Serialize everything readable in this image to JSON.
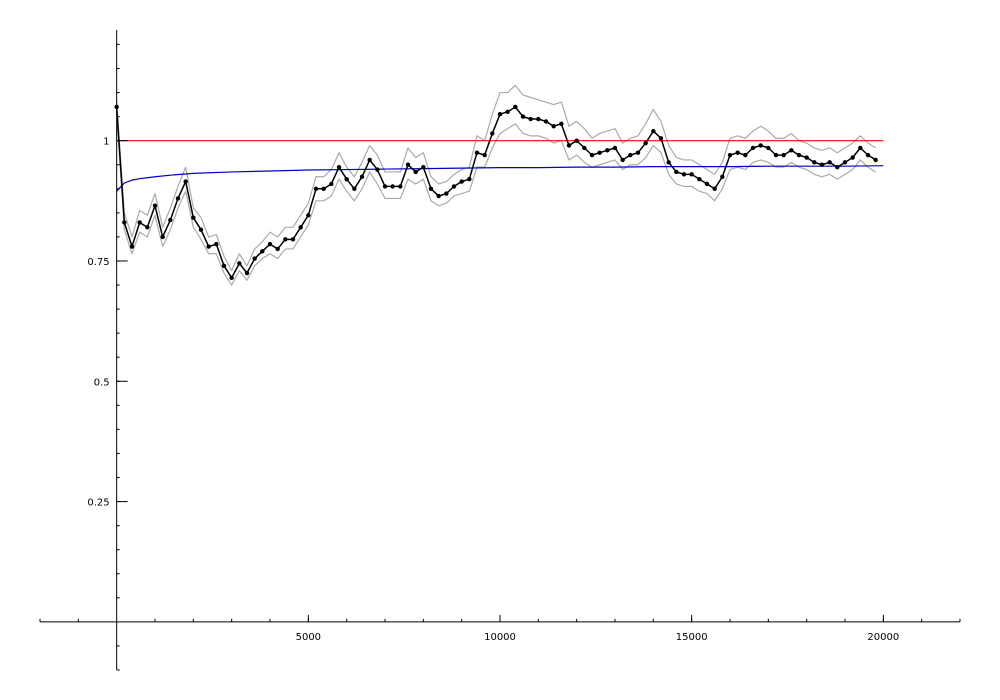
{
  "chart_data": {
    "type": "line",
    "title": "",
    "xlabel": "",
    "ylabel": "",
    "xlim": [
      -2000,
      22000
    ],
    "ylim": [
      -0.1,
      1.23
    ],
    "x_ticks": [
      {
        "value": 5000,
        "label": "5000"
      },
      {
        "value": 10000,
        "label": "10000"
      },
      {
        "value": 15000,
        "label": "15000"
      },
      {
        "value": 20000,
        "label": "20000"
      }
    ],
    "y_ticks": [
      {
        "value": 0.25,
        "label": "0.25"
      },
      {
        "value": 0.5,
        "label": "0.5"
      },
      {
        "value": 0.75,
        "label": "0.75"
      },
      {
        "value": 1,
        "label": "1"
      }
    ],
    "x_minor_step": 1000,
    "y_minor_step": 0.05,
    "grid": false,
    "colors": {
      "main": "#000000",
      "band": "#aaaaaa",
      "reference": "#ff0000",
      "trend": "#0000cc"
    },
    "series": [
      {
        "role": "estimate",
        "x": [
          0,
          200,
          400,
          600,
          800,
          1000,
          1200,
          1400,
          1600,
          1800,
          2000,
          2200,
          2400,
          2600,
          2800,
          3000,
          3200,
          3400,
          3600,
          3800,
          4000,
          4200,
          4400,
          4600,
          4800,
          5000,
          5200,
          5400,
          5600,
          5800,
          6000,
          6200,
          6400,
          6600,
          6800,
          7000,
          7200,
          7400,
          7600,
          7800,
          8000,
          8200,
          8400,
          8600,
          8800,
          9000,
          9200,
          9400,
          9600,
          9800,
          10000,
          10200,
          10400,
          10600,
          10800,
          11000,
          11200,
          11400,
          11600,
          11800,
          12000,
          12200,
          12400,
          12600,
          12800,
          13000,
          13200,
          13400,
          13600,
          13800,
          14000,
          14200,
          14400,
          14600,
          14800,
          15000,
          15200,
          15400,
          15600,
          15800,
          16000,
          16200,
          16400,
          16600,
          16800,
          17000,
          17200,
          17400,
          17600,
          17800,
          18000,
          18200,
          18400,
          18600,
          18800,
          19000,
          19200,
          19400,
          19600,
          19800,
          20000
        ],
        "y": [
          1.07,
          0.83,
          0.78,
          0.83,
          0.82,
          0.865,
          0.8,
          0.835,
          0.88,
          0.915,
          0.84,
          0.815,
          0.78,
          0.785,
          0.74,
          0.715,
          0.745,
          0.725,
          0.755,
          0.77,
          0.785,
          0.775,
          0.795,
          0.795,
          0.82,
          0.845,
          0.9,
          0.9,
          0.91,
          0.945,
          0.92,
          0.9,
          0.925,
          0.96,
          0.94,
          0.905,
          0.905,
          0.905,
          0.95,
          0.935,
          0.945,
          0.9,
          0.885,
          0.89,
          0.905,
          0.915,
          0.92,
          0.975,
          0.97,
          1.015,
          1.055,
          1.06,
          1.07,
          1.05,
          1.045,
          1.045,
          1.04,
          1.03,
          1.035,
          0.99,
          1.0,
          0.985,
          0.97,
          0.975,
          0.98,
          0.985,
          0.96,
          0.97,
          0.975,
          0.995,
          1.02,
          1.005,
          0.955,
          0.935,
          0.93,
          0.93,
          0.92,
          0.91,
          0.9,
          0.925,
          0.97,
          0.975,
          0.97,
          0.985,
          0.99,
          0.985,
          0.97,
          0.97,
          0.98,
          0.97,
          0.965,
          0.955,
          0.95,
          0.955,
          0.945,
          0.955,
          0.965,
          0.985,
          0.97,
          0.96,
          null
        ]
      },
      {
        "role": "upper-band",
        "x": [
          0,
          200,
          400,
          600,
          800,
          1000,
          1200,
          1400,
          1600,
          1800,
          2000,
          2200,
          2400,
          2600,
          2800,
          3000,
          3200,
          3400,
          3600,
          3800,
          4000,
          4200,
          4400,
          4600,
          4800,
          5000,
          5200,
          5400,
          5600,
          5800,
          6000,
          6200,
          6400,
          6600,
          6800,
          7000,
          7200,
          7400,
          7600,
          7800,
          8000,
          8200,
          8400,
          8600,
          8800,
          9000,
          9200,
          9400,
          9600,
          9800,
          10000,
          10200,
          10400,
          10600,
          10800,
          11000,
          11200,
          11400,
          11600,
          11800,
          12000,
          12200,
          12400,
          12600,
          12800,
          13000,
          13200,
          13400,
          13600,
          13800,
          14000,
          14200,
          14400,
          14600,
          14800,
          15000,
          15200,
          15400,
          15600,
          15800,
          16000,
          16200,
          16400,
          16600,
          16800,
          17000,
          17200,
          17400,
          17600,
          17800,
          18000,
          18200,
          18400,
          18600,
          18800,
          19000,
          19200,
          19400,
          19600,
          19800
        ],
        "y": [
          1.08,
          0.85,
          0.8,
          0.855,
          0.845,
          0.89,
          0.82,
          0.86,
          0.905,
          0.945,
          0.86,
          0.84,
          0.8,
          0.805,
          0.76,
          0.73,
          0.765,
          0.74,
          0.775,
          0.79,
          0.81,
          0.8,
          0.82,
          0.82,
          0.845,
          0.87,
          0.925,
          0.925,
          0.94,
          0.975,
          0.945,
          0.925,
          0.955,
          0.99,
          0.97,
          0.935,
          0.935,
          0.935,
          0.985,
          0.965,
          0.975,
          0.925,
          0.91,
          0.915,
          0.93,
          0.94,
          0.945,
          1.01,
          1.0,
          1.055,
          1.1,
          1.1,
          1.115,
          1.095,
          1.09,
          1.085,
          1.08,
          1.075,
          1.08,
          1.03,
          1.04,
          1.025,
          1.005,
          1.015,
          1.02,
          1.025,
          0.995,
          1.005,
          1.01,
          1.035,
          1.065,
          1.04,
          0.99,
          0.965,
          0.96,
          0.96,
          0.95,
          0.94,
          0.93,
          0.955,
          1.005,
          1.01,
          1.005,
          1.02,
          1.03,
          1.02,
          1.005,
          1.005,
          1.015,
          1.0,
          0.995,
          0.985,
          0.98,
          0.985,
          0.975,
          0.985,
          0.995,
          1.01,
          0.995,
          0.985
        ]
      },
      {
        "role": "lower-band",
        "x": [
          0,
          200,
          400,
          600,
          800,
          1000,
          1200,
          1400,
          1600,
          1800,
          2000,
          2200,
          2400,
          2600,
          2800,
          3000,
          3200,
          3400,
          3600,
          3800,
          4000,
          4200,
          4400,
          4600,
          4800,
          5000,
          5200,
          5400,
          5600,
          5800,
          6000,
          6200,
          6400,
          6600,
          6800,
          7000,
          7200,
          7400,
          7600,
          7800,
          8000,
          8200,
          8400,
          8600,
          8800,
          9000,
          9200,
          9400,
          9600,
          9800,
          10000,
          10200,
          10400,
          10600,
          10800,
          11000,
          11200,
          11400,
          11600,
          11800,
          12000,
          12200,
          12400,
          12600,
          12800,
          13000,
          13200,
          13400,
          13600,
          13800,
          14000,
          14200,
          14400,
          14600,
          14800,
          15000,
          15200,
          15400,
          15600,
          15800,
          16000,
          16200,
          16400,
          16600,
          16800,
          17000,
          17200,
          17400,
          17600,
          17800,
          18000,
          18200,
          18400,
          18600,
          18800,
          19000,
          19200,
          19400,
          19600,
          19800
        ],
        "y": [
          1.06,
          0.815,
          0.765,
          0.81,
          0.8,
          0.845,
          0.78,
          0.815,
          0.86,
          0.895,
          0.82,
          0.795,
          0.765,
          0.765,
          0.725,
          0.7,
          0.73,
          0.71,
          0.74,
          0.755,
          0.765,
          0.755,
          0.775,
          0.775,
          0.8,
          0.825,
          0.875,
          0.875,
          0.885,
          0.92,
          0.895,
          0.875,
          0.9,
          0.935,
          0.91,
          0.88,
          0.88,
          0.88,
          0.92,
          0.91,
          0.92,
          0.875,
          0.865,
          0.87,
          0.885,
          0.89,
          0.895,
          0.945,
          0.945,
          0.985,
          1.015,
          1.025,
          1.035,
          1.015,
          1.01,
          1.01,
          1.005,
          0.995,
          1.0,
          0.96,
          0.97,
          0.955,
          0.945,
          0.95,
          0.955,
          0.96,
          0.94,
          0.95,
          0.95,
          0.965,
          0.99,
          0.975,
          0.93,
          0.91,
          0.905,
          0.905,
          0.895,
          0.89,
          0.875,
          0.9,
          0.94,
          0.945,
          0.94,
          0.955,
          0.96,
          0.955,
          0.945,
          0.945,
          0.955,
          0.945,
          0.94,
          0.93,
          0.925,
          0.93,
          0.92,
          0.93,
          0.94,
          0.96,
          0.945,
          0.935
        ]
      },
      {
        "role": "reference",
        "x": [
          0,
          20000
        ],
        "y": [
          1.0,
          1.0
        ]
      },
      {
        "role": "trend",
        "x": [
          0,
          200,
          400,
          600,
          800,
          1000,
          1500,
          2000,
          3000,
          4000,
          5000,
          6000,
          7000,
          8000,
          9000,
          10000,
          11000,
          12000,
          13000,
          14000,
          15000,
          16000,
          17000,
          18000,
          19000,
          20000
        ],
        "y": [
          0.895,
          0.912,
          0.918,
          0.921,
          0.923,
          0.925,
          0.929,
          0.932,
          0.935,
          0.937,
          0.939,
          0.94,
          0.941,
          0.942,
          0.943,
          0.944,
          0.944,
          0.945,
          0.945,
          0.946,
          0.946,
          0.946,
          0.947,
          0.947,
          0.947,
          0.948
        ]
      }
    ]
  }
}
